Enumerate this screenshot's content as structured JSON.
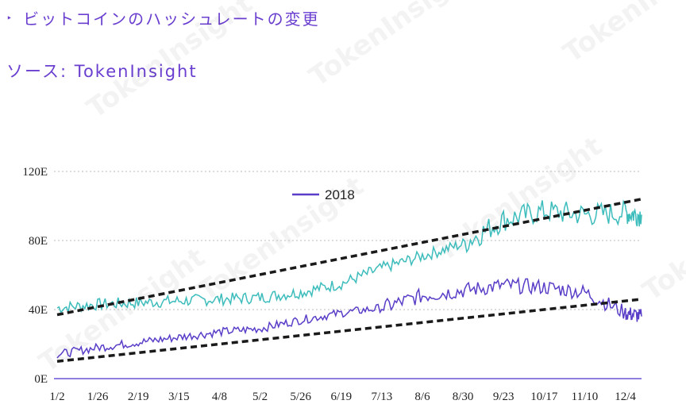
{
  "header": {
    "bullet": "‣",
    "title": "ビットコインのハッシュレートの変更",
    "source": "ソース: TokenInsight"
  },
  "colors": {
    "title": "#6a3fd0",
    "series_a": "#3dbcbc",
    "series_b": "#5a3ec8",
    "trend": "#1a1a1a",
    "grid": "#bbbbbb",
    "axis": "#6a55d8"
  },
  "chart_data": {
    "type": "line",
    "legend": {
      "label": "2018",
      "placement": "top-center"
    },
    "x_tick_labels": [
      "1/2",
      "1/26",
      "2/19",
      "3/15",
      "4/8",
      "5/2",
      "5/26",
      "6/19",
      "7/13",
      "8/6",
      "8/30",
      "9/23",
      "10/17",
      "11/10",
      "12/4"
    ],
    "y_tick_labels": [
      "0E",
      "40E",
      "80E",
      "120E"
    ],
    "ylim": [
      0,
      120
    ],
    "grid": "horizontal-dotted",
    "series": [
      {
        "color": "#3dbcbc",
        "x": [
          "1/2",
          "1/26",
          "2/19",
          "3/15",
          "4/8",
          "5/2",
          "5/26",
          "6/19",
          "7/13",
          "8/6",
          "8/30",
          "9/23",
          "10/17",
          "11/10",
          "12/4",
          "12/14"
        ],
        "values": [
          41,
          43,
          44,
          45,
          46,
          47,
          50,
          55,
          64,
          71,
          78,
          92,
          97,
          95,
          96,
          95
        ],
        "trend": [
          37,
          104
        ]
      },
      {
        "color": "#5a3ec8",
        "x": [
          "1/2",
          "1/26",
          "2/19",
          "3/15",
          "4/8",
          "5/2",
          "5/26",
          "6/19",
          "7/13",
          "8/6",
          "8/30",
          "9/23",
          "10/17",
          "11/10",
          "12/4",
          "12/14"
        ],
        "values": [
          14,
          18,
          21,
          24,
          27,
          29,
          34,
          38,
          41,
          48,
          51,
          54,
          53,
          50,
          38,
          36
        ],
        "trend": [
          10,
          46
        ]
      }
    ]
  }
}
